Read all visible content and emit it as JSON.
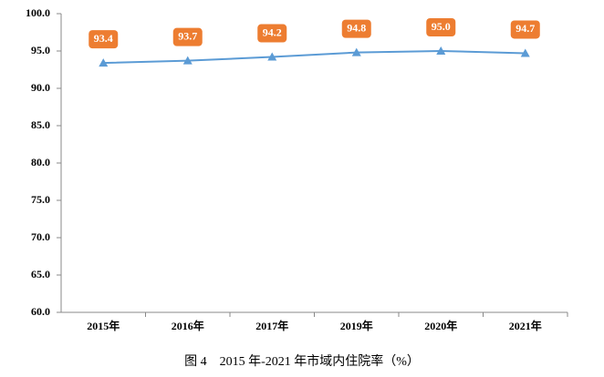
{
  "chart_data": {
    "type": "line",
    "caption": "图 4　2015 年-2021 年市域内住院率（%）",
    "categories": [
      "2015年",
      "2016年",
      "2017年",
      "2019年",
      "2020年",
      "2021年"
    ],
    "series": [
      {
        "name": "市域内住院率",
        "color": "#5b9bd5",
        "values": [
          93.4,
          93.7,
          94.2,
          94.8,
          95.0,
          94.7
        ],
        "value_labels": [
          "93.4",
          "93.7",
          "94.2",
          "94.8",
          "95.0",
          "94.7"
        ]
      }
    ],
    "label_color": "#ed7d31",
    "ylim": [
      60,
      100
    ],
    "yticks": [
      {
        "value": 60,
        "label": "60.0"
      },
      {
        "value": 65,
        "label": "65.0"
      },
      {
        "value": 70,
        "label": "70.0"
      },
      {
        "value": 75,
        "label": "75.0"
      },
      {
        "value": 80,
        "label": "80.0"
      },
      {
        "value": 85,
        "label": "85.0"
      },
      {
        "value": 90,
        "label": "90.0"
      },
      {
        "value": 95,
        "label": "95.0"
      },
      {
        "value": 100,
        "label": "100.0"
      }
    ],
    "grid": false
  }
}
